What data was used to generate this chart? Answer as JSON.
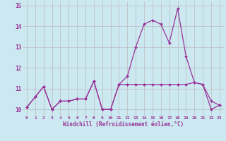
{
  "xlabel": "Windchill (Refroidissement éolien,°C)",
  "x": [
    0,
    1,
    2,
    3,
    4,
    5,
    6,
    7,
    8,
    9,
    10,
    11,
    12,
    13,
    14,
    15,
    16,
    17,
    18,
    19,
    20,
    21,
    22,
    23
  ],
  "line1_y": [
    10.1,
    10.6,
    11.1,
    10.0,
    10.4,
    10.4,
    10.5,
    10.5,
    11.35,
    10.0,
    10.0,
    11.2,
    11.6,
    13.0,
    14.1,
    14.3,
    14.1,
    13.2,
    14.85,
    12.55,
    11.3,
    11.2,
    10.4,
    10.2
  ],
  "line2_y": [
    10.1,
    10.6,
    11.1,
    10.0,
    10.4,
    10.4,
    10.5,
    10.5,
    11.35,
    10.0,
    10.0,
    11.2,
    11.2,
    11.2,
    11.2,
    11.2,
    11.2,
    11.2,
    11.2,
    11.2,
    11.3,
    11.2,
    10.0,
    10.2
  ],
  "line_color": "#993399",
  "bg_color": "#cce8f0",
  "grid_color": "#bbbbbb",
  "ylim": [
    9.7,
    15.2
  ],
  "yticks": [
    10,
    11,
    12,
    13,
    14,
    15
  ],
  "xlim": [
    -0.5,
    23.5
  ],
  "marker": "D",
  "markersize": 2.0,
  "linewidth": 0.9
}
